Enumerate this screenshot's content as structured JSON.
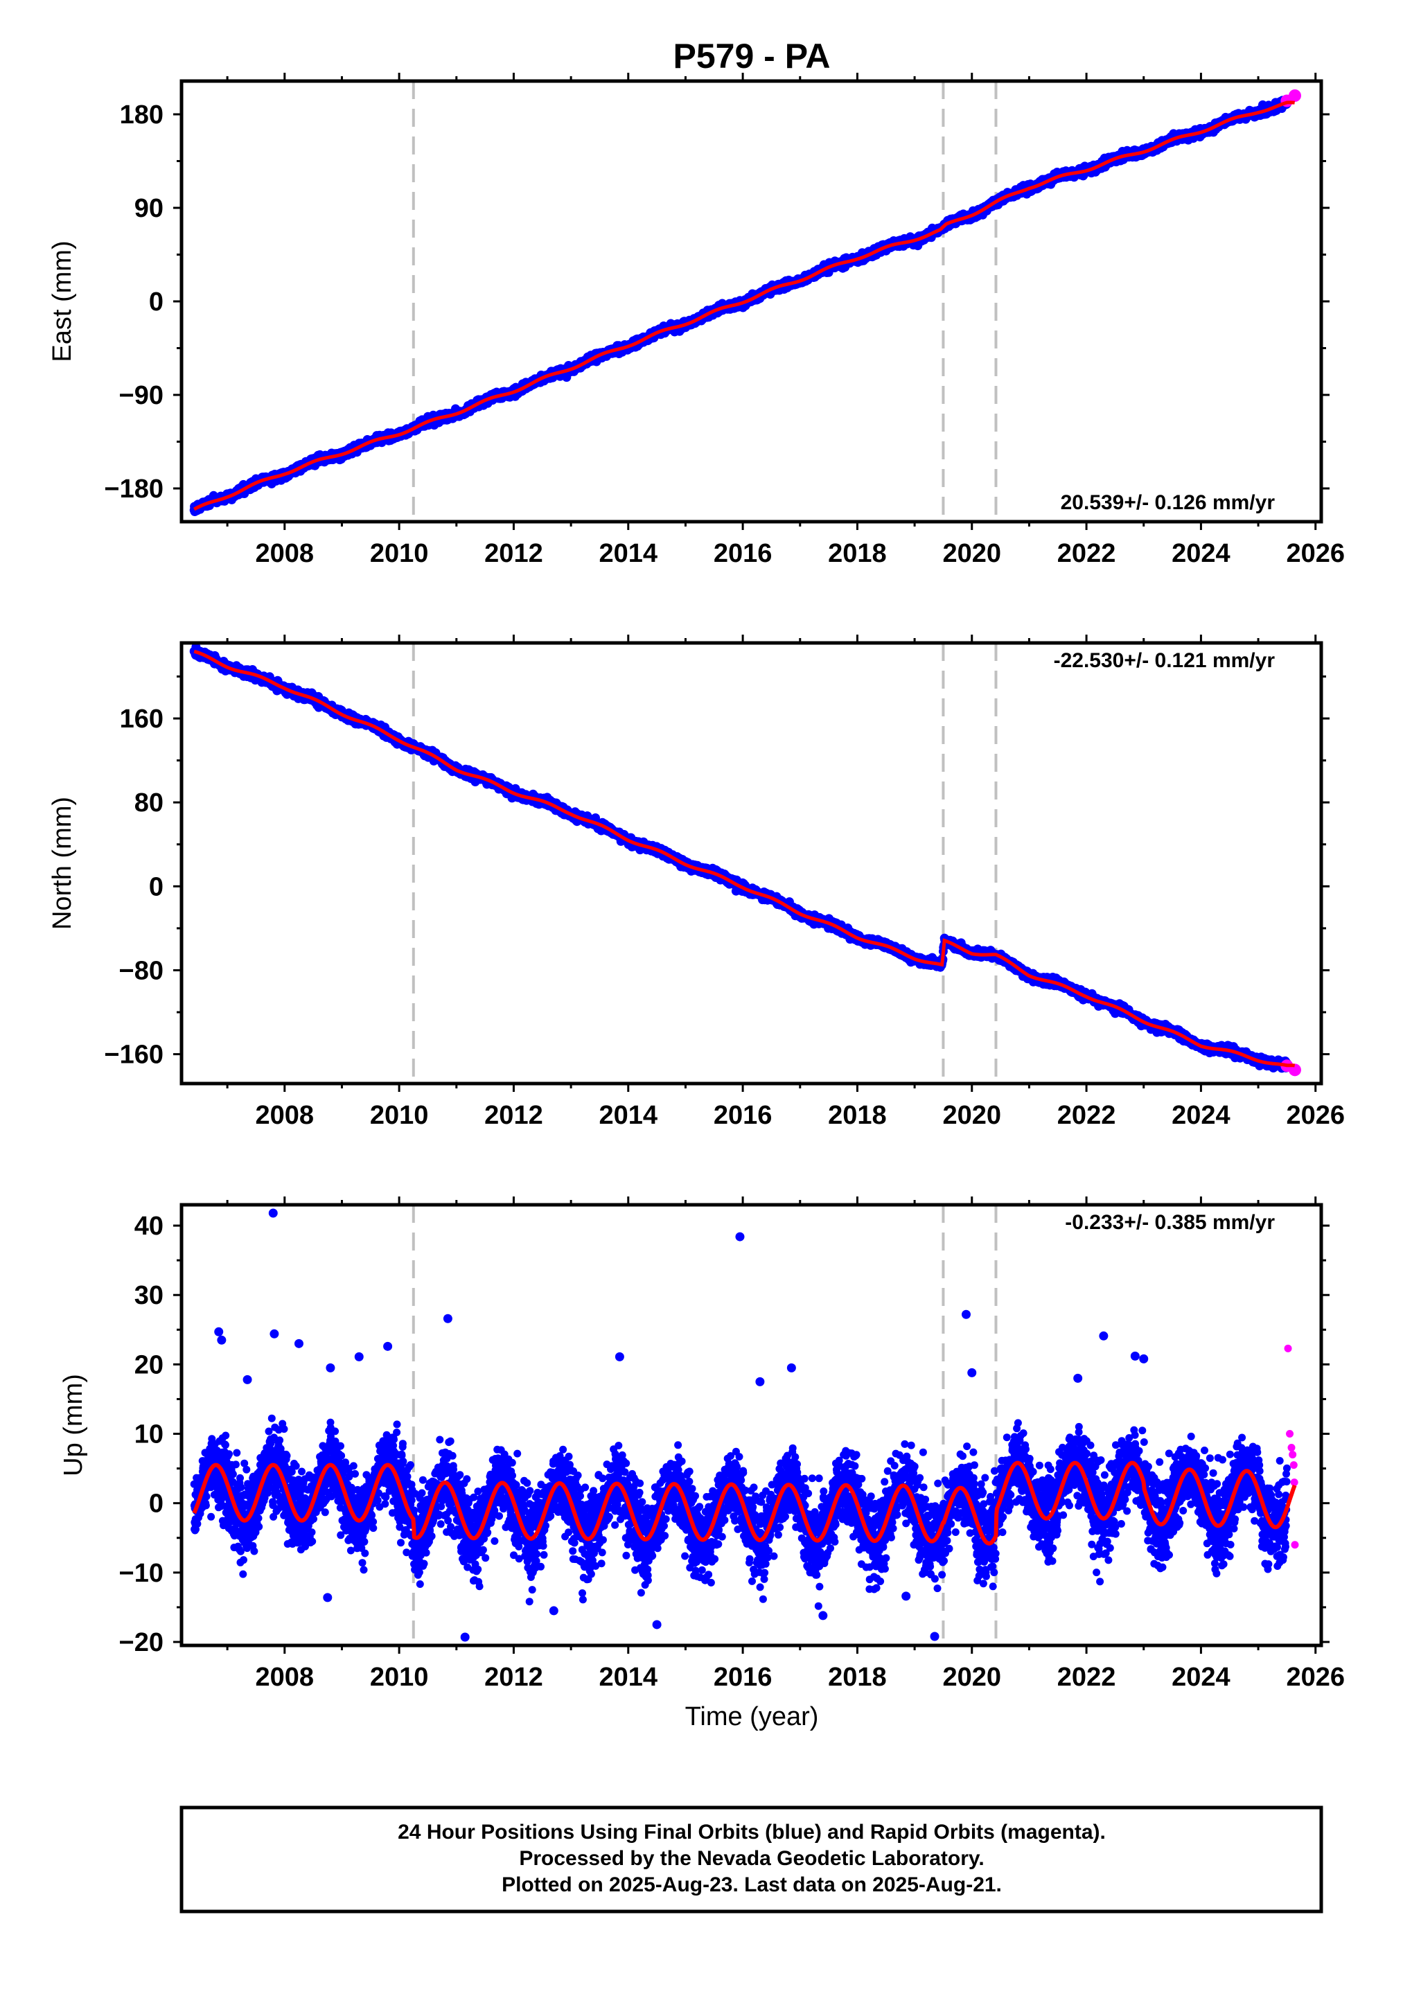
{
  "title": "P579 - PA",
  "footer": {
    "line1": "24 Hour Positions Using Final Orbits (blue) and Rapid Orbits (magenta).",
    "line2": "Processed by the Nevada Geodetic Laboratory.",
    "line3": "Plotted on 2025-Aug-23. Last data on 2025-Aug-21."
  },
  "colors": {
    "final_orbits": "#0000ff",
    "rapid_orbits": "#ff00ff",
    "model_fit": "#ff0000",
    "break_lines": "#c0c0c0"
  },
  "chart_data": [
    {
      "type": "scatter",
      "component": "east",
      "ylabel": "East (mm)",
      "xlabel": "",
      "xlim": [
        2006.2,
        2026.1
      ],
      "ylim": [
        -212,
        212
      ],
      "xticks": [
        "2008",
        "2010",
        "2012",
        "2014",
        "2016",
        "2018",
        "2020",
        "2022",
        "2024",
        "2026"
      ],
      "yticks": [
        "180",
        "90",
        "0",
        "−90",
        "−180"
      ],
      "yticks_values": [
        180,
        90,
        0,
        -90,
        -180
      ],
      "rate_label": "20.539+/- 0.126 mm/yr",
      "rate_position": "bottom-right",
      "rate_mm_per_yr": 20.539,
      "rate_sigma": 0.126,
      "break_years": [
        2010.25,
        2019.5,
        2020.42
      ],
      "start_year": 2006.42,
      "end_year": 2025.64,
      "rapid_start_year": 2025.5,
      "series": [
        {
          "name": "Final Orbits",
          "color": "#0000ff",
          "x": [
            2006.42,
            2007.0,
            2008.0,
            2009.0,
            2010.0,
            2011.0,
            2012.0,
            2013.0,
            2014.0,
            2015.0,
            2016.0,
            2017.0,
            2018.0,
            2019.0,
            2019.45,
            2019.55,
            2020.0,
            2021.0,
            2022.0,
            2023.0,
            2024.0,
            2025.0,
            2025.5
          ],
          "y": [
            -201,
            -187,
            -165,
            -146,
            -127,
            -107,
            -86,
            -64,
            -42,
            -21,
            0,
            21,
            42,
            60,
            68,
            73,
            84,
            110,
            127,
            145,
            164,
            183,
            190
          ]
        },
        {
          "name": "Rapid Orbits",
          "color": "#ff00ff",
          "x": [
            2025.5,
            2025.64
          ],
          "y": [
            193,
            198
          ]
        }
      ],
      "noise_mm": 2.6
    },
    {
      "type": "scatter",
      "component": "north",
      "ylabel": "North (mm)",
      "xlabel": "",
      "xlim": [
        2006.2,
        2026.1
      ],
      "ylim": [
        -188,
        232
      ],
      "xticks": [
        "2008",
        "2010",
        "2012",
        "2014",
        "2016",
        "2018",
        "2020",
        "2022",
        "2024",
        "2026"
      ],
      "yticks": [
        "160",
        "80",
        "0",
        "−80",
        "−160"
      ],
      "yticks_values": [
        160,
        80,
        0,
        -80,
        -160
      ],
      "rate_label": "-22.530+/- 0.121 mm/yr",
      "rate_position": "top-right",
      "rate_mm_per_yr": -22.53,
      "rate_sigma": 0.121,
      "break_years": [
        2010.25,
        2019.5,
        2020.42
      ],
      "start_year": 2006.42,
      "end_year": 2025.64,
      "rapid_start_year": 2025.5,
      "series": [
        {
          "name": "Final Orbits",
          "color": "#0000ff",
          "x": [
            2006.42,
            2007.0,
            2008.0,
            2009.0,
            2010.0,
            2011.0,
            2012.0,
            2013.0,
            2014.0,
            2015.0,
            2016.0,
            2017.0,
            2018.0,
            2019.0,
            2019.48,
            2019.52,
            2020.0,
            2020.42,
            2021.0,
            2022.0,
            2023.0,
            2024.0,
            2025.0,
            2025.5
          ],
          "y": [
            223,
            210,
            190,
            165,
            140,
            112,
            90,
            70,
            45,
            22,
            0,
            -25,
            -48,
            -68,
            -76,
            -53,
            -63,
            -66,
            -84,
            -104,
            -128,
            -151,
            -165,
            -172
          ]
        },
        {
          "name": "Rapid Orbits",
          "color": "#ff00ff",
          "x": [
            2025.5,
            2025.64
          ],
          "y": [
            -171,
            -175
          ]
        }
      ],
      "noise_mm": 2.6
    },
    {
      "type": "scatter",
      "component": "up",
      "ylabel": "Up (mm)",
      "xlabel": "Time (year)",
      "xlim": [
        2006.2,
        2026.1
      ],
      "ylim": [
        -20.5,
        43
      ],
      "xticks": [
        "2008",
        "2010",
        "2012",
        "2014",
        "2016",
        "2018",
        "2020",
        "2022",
        "2024",
        "2026"
      ],
      "yticks": [
        "40",
        "30",
        "20",
        "10",
        "0",
        "−10",
        "−20"
      ],
      "yticks_values": [
        40,
        30,
        20,
        10,
        0,
        -10,
        -20
      ],
      "rate_label": "-0.233+/- 0.385 mm/yr",
      "rate_position": "top-right",
      "rate_mm_per_yr": -0.233,
      "rate_sigma": 0.385,
      "break_years": [
        2010.25,
        2019.5,
        2020.42
      ],
      "start_year": 2006.42,
      "end_year": 2025.64,
      "rapid_start_year": 2025.5,
      "series": [
        {
          "name": "Final Orbits",
          "color": "#0000ff",
          "x": [
            2006.42,
            2010.25,
            2010.26,
            2019.5,
            2019.51,
            2020.42,
            2020.43,
            2023.0,
            2023.01,
            2025.5
          ],
          "y": [
            1.5,
            1.5,
            -1.0,
            -1.5,
            -1.8,
            -1.8,
            1.8,
            1.8,
            1.0,
            0.5
          ]
        },
        {
          "name": "Rapid Orbits",
          "color": "#ff00ff",
          "x": [
            2025.52,
            2025.55,
            2025.58,
            2025.6,
            2025.62,
            2025.63,
            2025.64
          ],
          "y": [
            22.3,
            10.0,
            8.0,
            7.0,
            5.5,
            3.0,
            -6.0
          ]
        }
      ],
      "seasonal_amplitude_mm": 4.0,
      "seasonal_phase_peak_year_fraction": 0.8,
      "noise_mm": 3.4,
      "outliers": {
        "x": [
          2006.85,
          2006.9,
          2007.35,
          2007.8,
          2007.82,
          2008.25,
          2008.75,
          2008.8,
          2009.3,
          2009.8,
          2010.85,
          2011.15,
          2012.7,
          2013.85,
          2014.5,
          2015.95,
          2016.3,
          2016.85,
          2017.4,
          2018.85,
          2019.35,
          2019.9,
          2020.0,
          2021.85,
          2022.3,
          2022.85,
          2023.0
        ],
        "y": [
          24.7,
          23.5,
          17.8,
          41.8,
          24.4,
          23.0,
          -13.6,
          19.5,
          21.1,
          22.6,
          26.6,
          -19.3,
          -15.5,
          21.1,
          -17.5,
          38.4,
          17.5,
          19.5,
          -16.2,
          -13.4,
          -19.2,
          27.2,
          18.8,
          18.0,
          24.1,
          21.2,
          20.8
        ]
      }
    }
  ]
}
